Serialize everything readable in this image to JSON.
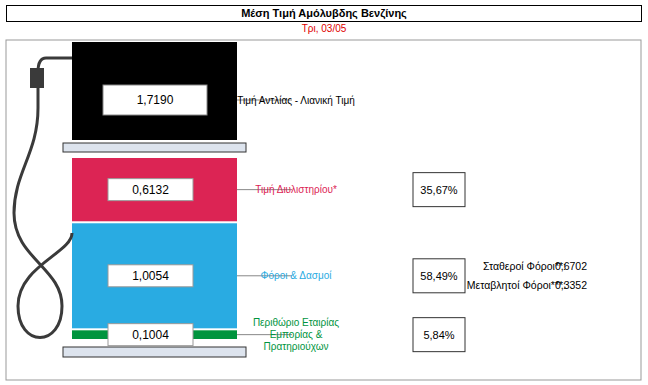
{
  "chart_data": {
    "type": "bar",
    "stacked": true,
    "title": "Μέση Τιμή Αμόλυβδης Βενζίνης",
    "subtitle": "Τρι, 03/05",
    "categories": [
      "Τιμή Διυλιστηρίου*",
      "Φόροι & Δασμοί",
      "Περιθώριο Εταιρίας Εμπορίας & Πρατηριούχων"
    ],
    "values": [
      0.6132,
      1.0054,
      0.1004
    ],
    "value_labels": [
      "0,6132",
      "1,0054",
      "0,1004"
    ],
    "colors": [
      "#dc2454",
      "#29abe2",
      "#00943e"
    ],
    "shares": [
      "35,67%",
      "58,49%",
      "5,84%"
    ],
    "total": {
      "name": "Τιμή Αντλίας - Λιανική Τιμή",
      "value": 1.719,
      "label": "1,7190",
      "color": "#000000"
    },
    "tax_components": [
      {
        "name": "Σταθεροί Φόροι**:",
        "label": "0,6702"
      },
      {
        "name": "Μεταβλητοί Φόροι***:",
        "label": "0,3352"
      }
    ],
    "data_labels": true,
    "tick_labels": false
  }
}
